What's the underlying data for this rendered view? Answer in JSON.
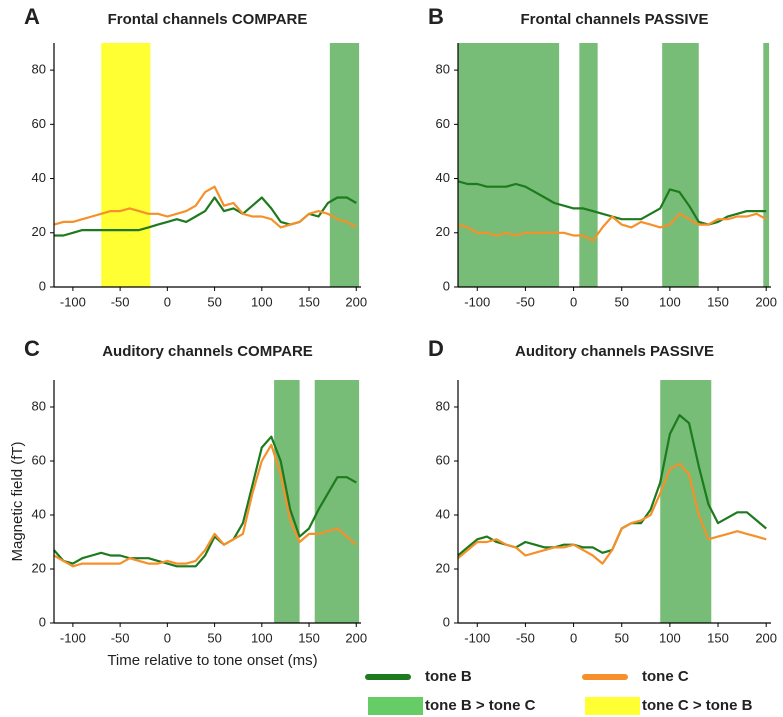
{
  "chart_data": [
    {
      "type": "line",
      "panel": "A",
      "title": "Frontal channels COMPARE",
      "x": [
        -120,
        -110,
        -100,
        -90,
        -80,
        -70,
        -60,
        -50,
        -40,
        -30,
        -20,
        -10,
        0,
        10,
        20,
        30,
        40,
        50,
        60,
        70,
        80,
        90,
        100,
        110,
        120,
        130,
        140,
        150,
        160,
        170,
        180,
        190,
        200
      ],
      "series": [
        {
          "color": "#1e7a1e",
          "values": [
            19,
            19,
            20,
            21,
            21,
            21,
            21,
            21,
            21,
            21,
            22,
            23,
            24,
            25,
            24,
            26,
            28,
            33,
            28,
            29,
            27,
            30,
            33,
            29,
            24,
            23,
            24,
            27,
            26,
            31,
            33,
            33,
            31
          ]
        },
        {
          "color": "#f5902a",
          "values": [
            23,
            24,
            24,
            25,
            26,
            27,
            28,
            28,
            29,
            28,
            27,
            27,
            26,
            27,
            28,
            30,
            35,
            37,
            30,
            31,
            27,
            26,
            26,
            25,
            22,
            23,
            24,
            27,
            28,
            27,
            25,
            24,
            22
          ]
        }
      ],
      "regions": [
        {
          "x0": -70,
          "x1": -18,
          "color": "#ffff33"
        },
        {
          "x0": 172,
          "x1": 203,
          "color": "#77bd77"
        }
      ],
      "xlim": [
        -120,
        205
      ],
      "ylim": [
        0,
        90
      ],
      "xticks": [
        -100,
        -50,
        0,
        50,
        100,
        150,
        200
      ],
      "yticks": [
        0,
        20,
        40,
        60,
        80
      ]
    },
    {
      "type": "line",
      "panel": "B",
      "title": "Frontal channels PASSIVE",
      "x": [
        -120,
        -110,
        -100,
        -90,
        -80,
        -70,
        -60,
        -50,
        -40,
        -30,
        -20,
        -10,
        0,
        10,
        20,
        30,
        40,
        50,
        60,
        70,
        80,
        90,
        100,
        110,
        120,
        130,
        140,
        150,
        160,
        170,
        180,
        190,
        200
      ],
      "series": [
        {
          "color": "#1e7a1e",
          "values": [
            39,
            38,
            38,
            37,
            37,
            37,
            38,
            37,
            35,
            33,
            31,
            30,
            29,
            29,
            28,
            27,
            26,
            25,
            25,
            25,
            27,
            29,
            36,
            35,
            30,
            24,
            23,
            24,
            26,
            27,
            28,
            28,
            28
          ]
        },
        {
          "color": "#f5902a",
          "values": [
            23,
            22,
            20,
            20,
            19,
            20,
            19,
            20,
            20,
            20,
            20,
            20,
            19,
            19,
            17,
            22,
            26,
            23,
            22,
            24,
            23,
            22,
            23,
            27,
            25,
            23,
            23,
            25,
            25,
            26,
            26,
            27,
            25
          ]
        }
      ],
      "regions": [
        {
          "x0": -120,
          "x1": -15,
          "color": "#77bd77"
        },
        {
          "x0": 6,
          "x1": 25,
          "color": "#77bd77"
        },
        {
          "x0": 92,
          "x1": 130,
          "color": "#77bd77"
        },
        {
          "x0": 197,
          "x1": 203,
          "color": "#77bd77"
        }
      ],
      "xlim": [
        -120,
        205
      ],
      "ylim": [
        0,
        90
      ],
      "xticks": [
        -100,
        -50,
        0,
        50,
        100,
        150,
        200
      ],
      "yticks": [
        0,
        20,
        40,
        60,
        80
      ]
    },
    {
      "type": "line",
      "panel": "C",
      "title": "Auditory channels COMPARE",
      "xlabel": "Time relative to tone onset (ms)",
      "ylabel": "Magnetic field (fT)",
      "x": [
        -120,
        -110,
        -100,
        -90,
        -80,
        -70,
        -60,
        -50,
        -40,
        -30,
        -20,
        -10,
        0,
        10,
        20,
        30,
        40,
        50,
        60,
        70,
        80,
        90,
        100,
        110,
        120,
        130,
        140,
        150,
        160,
        170,
        180,
        190,
        200
      ],
      "series": [
        {
          "color": "#1e7a1e",
          "values": [
            27,
            23,
            22,
            24,
            25,
            26,
            25,
            25,
            24,
            24,
            24,
            23,
            22,
            21,
            21,
            21,
            25,
            32,
            29,
            31,
            37,
            51,
            65,
            69,
            60,
            42,
            32,
            35,
            42,
            48,
            54,
            54,
            52
          ]
        },
        {
          "color": "#f5902a",
          "values": [
            25,
            23,
            21,
            22,
            22,
            22,
            22,
            22,
            24,
            23,
            22,
            22,
            23,
            22,
            22,
            23,
            27,
            33,
            29,
            31,
            33,
            48,
            60,
            66,
            55,
            38,
            30,
            33,
            33,
            34,
            35,
            32,
            29
          ]
        }
      ],
      "regions": [
        {
          "x0": 113,
          "x1": 140,
          "color": "#77bd77"
        },
        {
          "x0": 156,
          "x1": 203,
          "color": "#77bd77"
        }
      ],
      "xlim": [
        -120,
        205
      ],
      "ylim": [
        0,
        90
      ],
      "xticks": [
        -100,
        -50,
        0,
        50,
        100,
        150,
        200
      ],
      "yticks": [
        0,
        20,
        40,
        60,
        80
      ]
    },
    {
      "type": "line",
      "panel": "D",
      "title": "Auditory channels PASSIVE",
      "x": [
        -120,
        -110,
        -100,
        -90,
        -80,
        -70,
        -60,
        -50,
        -40,
        -30,
        -20,
        -10,
        0,
        10,
        20,
        30,
        40,
        50,
        60,
        70,
        80,
        90,
        100,
        110,
        120,
        130,
        140,
        150,
        160,
        170,
        180,
        190,
        200
      ],
      "series": [
        {
          "color": "#1e7a1e",
          "values": [
            25,
            28,
            31,
            32,
            30,
            29,
            28,
            30,
            29,
            28,
            28,
            29,
            29,
            28,
            28,
            26,
            27,
            35,
            37,
            37,
            42,
            52,
            70,
            77,
            74,
            58,
            44,
            37,
            39,
            41,
            41,
            38,
            35
          ]
        },
        {
          "color": "#f5902a",
          "values": [
            24,
            27,
            30,
            30,
            31,
            29,
            28,
            25,
            26,
            27,
            28,
            28,
            29,
            27,
            25,
            22,
            27,
            35,
            37,
            38,
            40,
            48,
            57,
            59,
            55,
            40,
            31,
            32,
            33,
            34,
            33,
            32,
            31
          ]
        }
      ],
      "regions": [
        {
          "x0": 90,
          "x1": 143,
          "color": "#77bd77"
        }
      ],
      "xlim": [
        -120,
        205
      ],
      "ylim": [
        0,
        90
      ],
      "xticks": [
        -100,
        -50,
        0,
        50,
        100,
        150,
        200
      ],
      "yticks": [
        0,
        20,
        40,
        60,
        80
      ]
    }
  ],
  "legend": [
    {
      "label": "tone B",
      "color": "#1e7a1e",
      "kind": "line"
    },
    {
      "label": "tone C",
      "color": "#f5902a",
      "kind": "line"
    },
    {
      "label": "tone B > tone C",
      "color": "#66cc66",
      "kind": "box"
    },
    {
      "label": "tone C > tone B",
      "color": "#ffff33",
      "kind": "box"
    }
  ]
}
